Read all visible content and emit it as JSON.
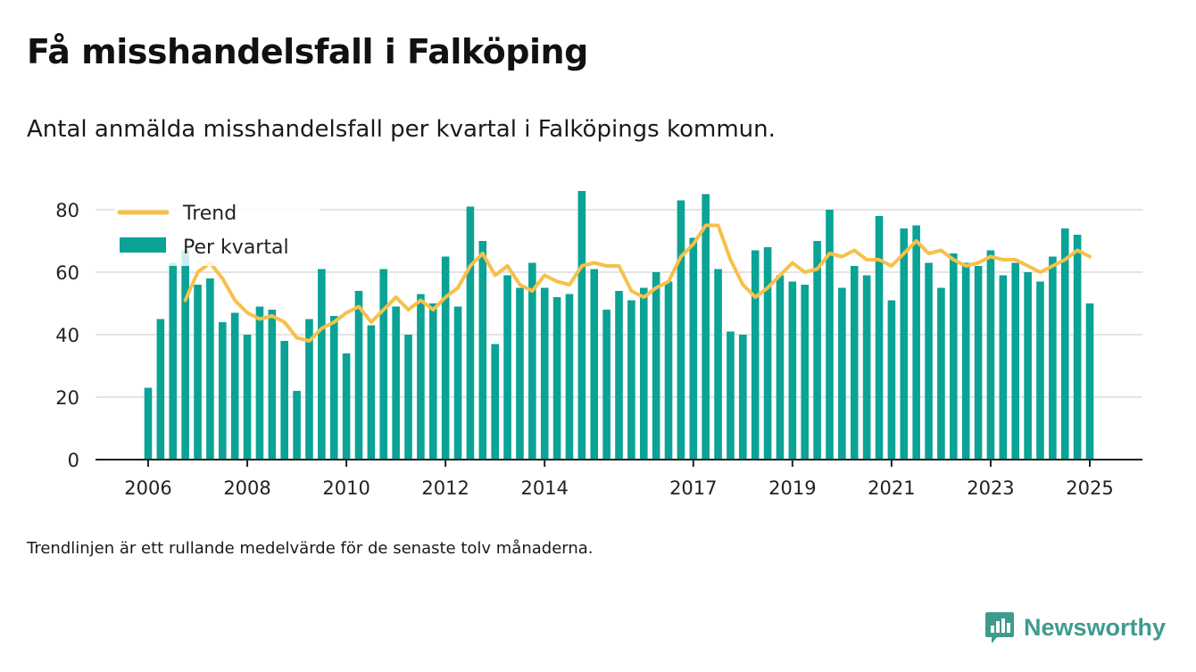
{
  "title": "Få misshandelsfall i Falköping",
  "subtitle": "Antal anmälda misshandelsfall per kvartal i Falköpings kommun.",
  "note": "Trendlinjen är ett rullande medelvärde för de senaste tolv månaderna.",
  "brand": {
    "name": "Newsworthy",
    "icon": "newsworthy-logo-icon"
  },
  "colors": {
    "bars": "#0aa396",
    "trend": "#f7c04a",
    "grid": "#dcdcdc",
    "axis": "#222222"
  },
  "chart_data": {
    "type": "bar",
    "x_start_year": 2006,
    "x_end_year": 2025,
    "x_ticks": [
      "2006",
      "2008",
      "2010",
      "2012",
      "2014",
      "2017",
      "2019",
      "2021",
      "2023",
      "2025"
    ],
    "ylim": [
      0,
      90
    ],
    "y_ticks": [
      0,
      20,
      40,
      60,
      80
    ],
    "grid": true,
    "legend_position": "top-left",
    "series": [
      {
        "name": "Per kvartal",
        "kind": "bar",
        "values": [
          23,
          45,
          63,
          67,
          56,
          58,
          44,
          47,
          40,
          49,
          48,
          38,
          22,
          45,
          61,
          46,
          34,
          54,
          43,
          61,
          49,
          40,
          53,
          50,
          65,
          49,
          81,
          70,
          37,
          59,
          55,
          63,
          55,
          52,
          53,
          86,
          61,
          48,
          54,
          51,
          55,
          60,
          57,
          83,
          71,
          85,
          61,
          41,
          40,
          67,
          68,
          59,
          57,
          56,
          70,
          80,
          55,
          62,
          59,
          78,
          51,
          74,
          75,
          63,
          55,
          66,
          63,
          62,
          67,
          59,
          63,
          60,
          57,
          65,
          74,
          72,
          50
        ]
      },
      {
        "name": "Trend",
        "kind": "line",
        "values": [
          null,
          null,
          null,
          51,
          60,
          63,
          58,
          51,
          47,
          45,
          46,
          44,
          39,
          38,
          42,
          44,
          47,
          49,
          44,
          48,
          52,
          48,
          51,
          48,
          52,
          55,
          62,
          66,
          59,
          62,
          56,
          54,
          59,
          57,
          56,
          62,
          63,
          62,
          62,
          54,
          52,
          55,
          57,
          65,
          69,
          75,
          75,
          64,
          56,
          52,
          55,
          59,
          63,
          60,
          61,
          66,
          65,
          67,
          64,
          64,
          62,
          66,
          70,
          66,
          67,
          64,
          62,
          63,
          65,
          64,
          64,
          62,
          60,
          62,
          64,
          67,
          65
        ]
      }
    ]
  }
}
